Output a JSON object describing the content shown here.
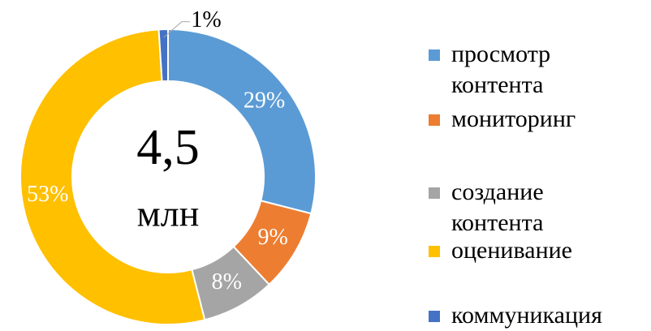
{
  "chart_data": {
    "type": "donut",
    "categories": [
      "просмотр контента",
      "мониторинг",
      "создание контента",
      "оценивание",
      "коммуникация"
    ],
    "values": [
      29,
      9,
      8,
      53,
      1
    ],
    "value_labels": [
      "29%",
      "9%",
      "8%",
      "53%",
      "1%"
    ],
    "colors": [
      "#5b9bd5",
      "#ed7d31",
      "#a5a5a5",
      "#ffc000",
      "#4472c4"
    ],
    "annotations": [
      "4,5",
      "млн"
    ],
    "legend": "right"
  }
}
